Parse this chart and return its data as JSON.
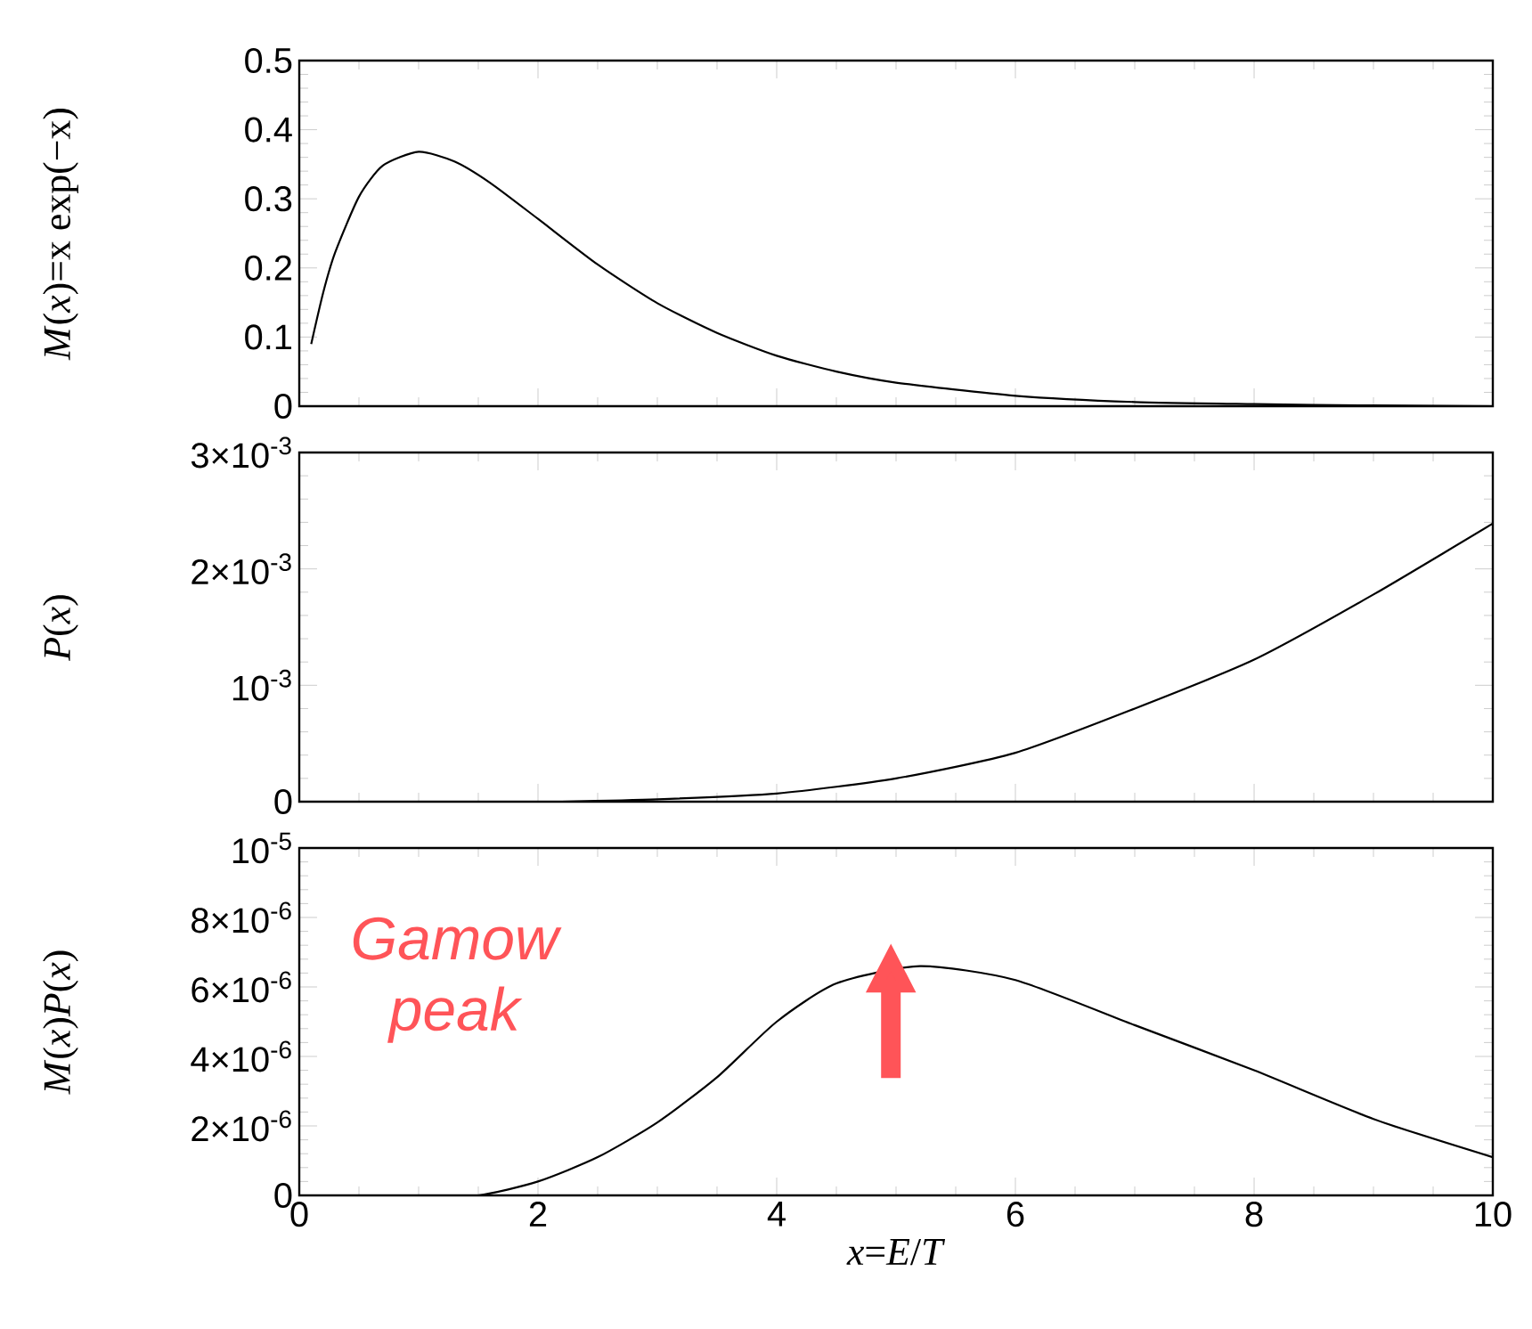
{
  "chart_data": [
    {
      "type": "line",
      "ylabel": "*M*(*x*)=x exp(−x)",
      "xlim": [
        0,
        10
      ],
      "xticks": [
        0,
        2,
        4,
        6,
        8,
        10
      ],
      "ylim": [
        0,
        0.5
      ],
      "yticks": [
        0,
        0.1,
        0.2,
        0.3,
        0.4,
        0.5
      ],
      "tick_labels": "y",
      "series": [
        {
          "color": "#000000",
          "x": [
            0.1,
            0.2,
            0.3,
            0.5,
            0.7,
            1,
            1.3,
            1.6,
            2,
            2.5,
            3,
            3.5,
            4,
            4.5,
            5,
            6,
            7,
            8,
            9,
            10
          ],
          "values": [
            0.09,
            0.164,
            0.222,
            0.303,
            0.348,
            0.368,
            0.354,
            0.323,
            0.271,
            0.205,
            0.149,
            0.106,
            0.073,
            0.05,
            0.034,
            0.015,
            0.006,
            0.003,
            0.001,
            0
          ]
        }
      ]
    },
    {
      "type": "line",
      "ylabel": "*P*(*x*)",
      "xlim": [
        0,
        10
      ],
      "xticks": [
        0,
        2,
        4,
        6,
        8,
        10
      ],
      "ylim": [
        0,
        0.003
      ],
      "yticks": [
        0,
        {
          "value": 0.001,
          "label": "10$^{-3}$"
        },
        {
          "value": 0.002,
          "label": "2×10$^{-3}$"
        },
        {
          "value": 0.003,
          "label": "3×10$^{-3}$"
        }
      ],
      "tick_labels": "y",
      "series": [
        {
          "color": "#000000",
          "x": [
            2.2,
            3,
            4,
            5,
            6,
            7,
            8,
            9,
            10
          ],
          "values": [
            0,
            2e-05,
            7e-05,
            0.0002,
            0.00042,
            0.0008,
            0.00122,
            0.00178,
            0.00239
          ]
        }
      ]
    },
    {
      "type": "line",
      "ylabel": "*M*(*x*)*P*(*x*)",
      "xlabel": "*x*=*E*/*T*",
      "xlim": [
        0,
        10
      ],
      "xticks": [
        0,
        2,
        4,
        6,
        8,
        10
      ],
      "ylim": [
        0,
        1e-05
      ],
      "yticks": [
        0,
        {
          "value": 2e-06,
          "label": "2×10$^{-6}$"
        },
        {
          "value": 4e-06,
          "label": "4×10$^{-6}$"
        },
        {
          "value": 6e-06,
          "label": "6×10$^{-6}$"
        },
        {
          "value": 8e-06,
          "label": "8×10$^{-6}$"
        },
        {
          "value": 1e-05,
          "label": "10$^{-5}$"
        }
      ],
      "annotations": [
        "Gamow peak"
      ],
      "series": [
        {
          "color": "#000000",
          "x": [
            0,
            1,
            1.5,
            2,
            2.5,
            3,
            3.5,
            4,
            4.5,
            5.2,
            6,
            7,
            8,
            9,
            10
          ],
          "values": [
            0,
            0,
            0,
            4e-07,
            1.1e-06,
            2.1e-06,
            3.4e-06,
            5e-06,
            6.1e-06,
            6.6e-06,
            6.2e-06,
            4.9e-06,
            3.6e-06,
            2.2e-06,
            1.1e-06
          ]
        }
      ]
    }
  ]
}
